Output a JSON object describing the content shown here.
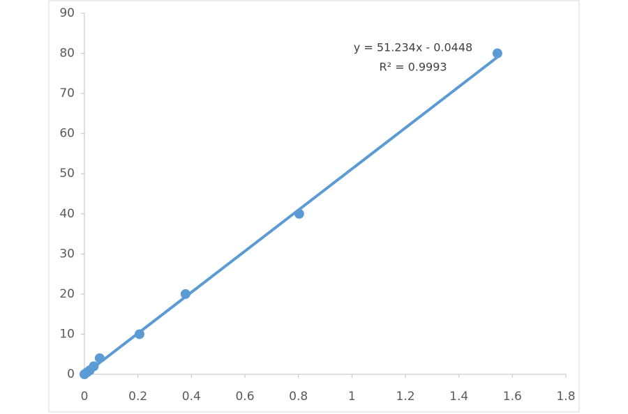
{
  "chart_data": {
    "type": "scatter",
    "x": [
      0,
      0.01,
      0.02,
      0.035,
      0.057,
      0.206,
      0.378,
      0.803,
      1.544
    ],
    "values": [
      0,
      0.5,
      1,
      2,
      4,
      10,
      20,
      40,
      80
    ],
    "color": "#5b9bd5",
    "xlim": [
      0,
      1.8
    ],
    "xticks": [
      0,
      0.2,
      0.4,
      0.6,
      0.8,
      1,
      1.2,
      1.4,
      1.6,
      1.8
    ],
    "ylim": [
      0,
      90
    ],
    "yticks": [
      0,
      10,
      20,
      30,
      40,
      50,
      60,
      70,
      80,
      90
    ],
    "grid": false,
    "trendline": {
      "slope": 51.234,
      "intercept": -0.0448,
      "equation": "y = 51.234x - 0.0448",
      "r2": "R² = 0.9993"
    }
  }
}
